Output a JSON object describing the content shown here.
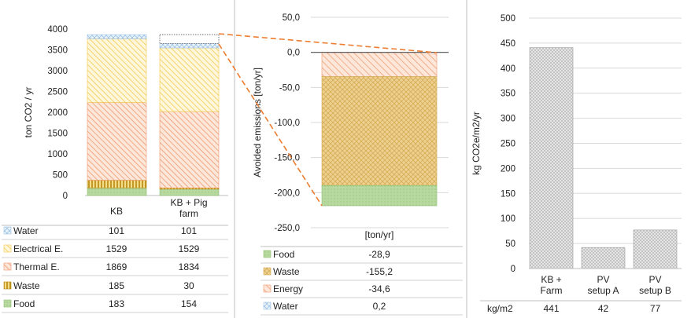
{
  "chart_data": [
    {
      "type": "bar",
      "stacked": true,
      "ylabel": "ton CO2 / yr",
      "ylim": [
        0,
        4000
      ],
      "yticks": [
        "4000",
        "3500",
        "3000",
        "2500",
        "2000",
        "1500",
        "1000",
        "500",
        "0"
      ],
      "categories": [
        "KB",
        "KB + Pig farm"
      ],
      "series": [
        {
          "name": "Food",
          "values": [
            183,
            154
          ],
          "color": "#a9d18e"
        },
        {
          "name": "Waste",
          "values": [
            185,
            30
          ],
          "color": "#c9a227"
        },
        {
          "name": "Thermal E.",
          "values": [
            1869,
            1834
          ],
          "color": "#f4b183"
        },
        {
          "name": "Electrical E.",
          "values": [
            1529,
            1529
          ],
          "color": "#ffe699"
        },
        {
          "name": "Water",
          "values": [
            101,
            101
          ],
          "color": "#9dc3e6"
        }
      ],
      "table_rows": [
        {
          "name": "Water",
          "c1": "101",
          "c2": "101"
        },
        {
          "name": "Electrical E.",
          "c1": "1529",
          "c2": "1529"
        },
        {
          "name": "Thermal E.",
          "c1": "1869",
          "c2": "1834"
        },
        {
          "name": "Waste",
          "c1": "185",
          "c2": "30"
        },
        {
          "name": "Food",
          "c1": "183",
          "c2": "154"
        }
      ]
    },
    {
      "type": "bar",
      "stacked": true,
      "ylabel": "Avoided emissions [ton/yr]",
      "ylim": [
        -250,
        50
      ],
      "yticks": [
        "50,0",
        "0,0",
        "-50,0",
        "-100,0",
        "-150,0",
        "-200,0",
        "-250,0"
      ],
      "category_label": "[ton/yr]",
      "series": [
        {
          "name": "Water",
          "value": 0.2,
          "color": "#9dc3e6"
        },
        {
          "name": "Energy",
          "value": -34.6,
          "color": "#f4b183"
        },
        {
          "name": "Waste",
          "value": -155.2,
          "color": "#e2c07a"
        },
        {
          "name": "Food",
          "value": -28.9,
          "color": "#a9d18e"
        }
      ],
      "table_rows": [
        {
          "name": "Food",
          "value": "-28,9"
        },
        {
          "name": "Waste",
          "value": "-155,2"
        },
        {
          "name": "Energy",
          "value": "-34,6"
        },
        {
          "name": "Water",
          "value": "0,2"
        }
      ]
    },
    {
      "type": "bar",
      "ylabel": "kg CO2e/m2/yr",
      "ylim": [
        0,
        500
      ],
      "yticks": [
        "500",
        "450",
        "400",
        "350",
        "300",
        "250",
        "200",
        "150",
        "100",
        "50",
        "0"
      ],
      "categories": [
        "KB + Farm",
        "PV setup A",
        "PV setup B"
      ],
      "values": [
        441,
        42,
        77
      ],
      "table_label": "kg/m2",
      "table_values": [
        "441",
        "42",
        "77"
      ]
    }
  ]
}
